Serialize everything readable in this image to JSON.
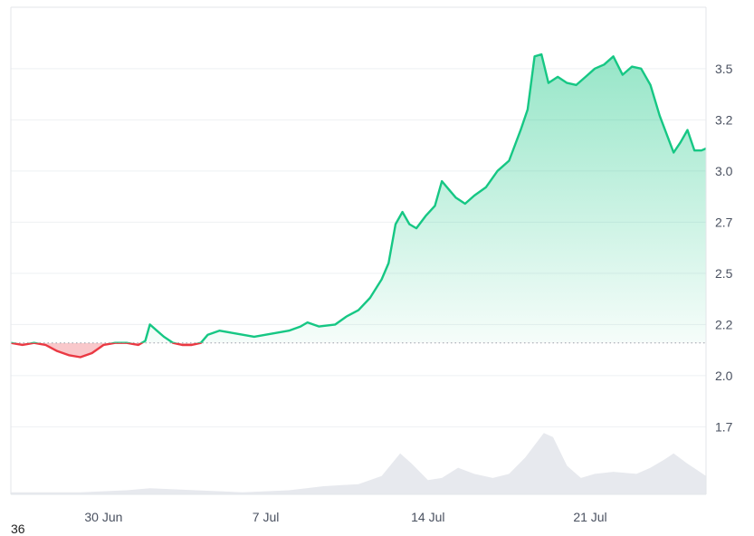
{
  "chart_data": {
    "type": "area",
    "baseline": 2.16,
    "ylim": [
      1.42,
      3.8
    ],
    "y_ticks": [
      "3.5",
      "3.2",
      "3.0",
      "2.7",
      "2.5",
      "2.2",
      "2.0",
      "1.7"
    ],
    "y_tick_values": [
      3.5,
      3.25,
      3.0,
      2.75,
      2.5,
      2.25,
      2.0,
      1.75
    ],
    "x_ticks": [
      "30 Jun",
      "7 Jul",
      "14 Jul",
      "21 Jul"
    ],
    "x_tick_days": [
      4,
      11,
      18,
      25
    ],
    "xlim_days": [
      0,
      30
    ],
    "colors": {
      "up_line": "#16c784",
      "down_line": "#ea3943",
      "up_fill_top": "#16c784",
      "down_fill": "#ea3943",
      "volume": "#e7e9ee",
      "grid": "#eef0f3",
      "baseline": "#9aa0aa"
    },
    "price": [
      [
        0.0,
        2.16
      ],
      [
        0.5,
        2.15
      ],
      [
        1.0,
        2.16
      ],
      [
        1.5,
        2.15
      ],
      [
        2.0,
        2.12
      ],
      [
        2.5,
        2.1
      ],
      [
        3.0,
        2.09
      ],
      [
        3.5,
        2.11
      ],
      [
        4.0,
        2.15
      ],
      [
        4.5,
        2.16
      ],
      [
        5.0,
        2.16
      ],
      [
        5.5,
        2.15
      ],
      [
        5.8,
        2.17
      ],
      [
        6.0,
        2.25
      ],
      [
        6.3,
        2.22
      ],
      [
        6.6,
        2.19
      ],
      [
        7.0,
        2.16
      ],
      [
        7.4,
        2.15
      ],
      [
        7.8,
        2.15
      ],
      [
        8.2,
        2.16
      ],
      [
        8.5,
        2.2
      ],
      [
        9.0,
        2.22
      ],
      [
        9.5,
        2.21
      ],
      [
        10.0,
        2.2
      ],
      [
        10.5,
        2.19
      ],
      [
        11.0,
        2.2
      ],
      [
        11.5,
        2.21
      ],
      [
        12.0,
        2.22
      ],
      [
        12.5,
        2.24
      ],
      [
        12.8,
        2.26
      ],
      [
        13.3,
        2.24
      ],
      [
        14.0,
        2.25
      ],
      [
        14.5,
        2.29
      ],
      [
        15.0,
        2.32
      ],
      [
        15.5,
        2.38
      ],
      [
        16.0,
        2.47
      ],
      [
        16.3,
        2.55
      ],
      [
        16.6,
        2.74
      ],
      [
        16.9,
        2.8
      ],
      [
        17.2,
        2.74
      ],
      [
        17.5,
        2.72
      ],
      [
        17.9,
        2.78
      ],
      [
        18.3,
        2.83
      ],
      [
        18.6,
        2.95
      ],
      [
        18.9,
        2.91
      ],
      [
        19.2,
        2.87
      ],
      [
        19.6,
        2.84
      ],
      [
        20.0,
        2.88
      ],
      [
        20.5,
        2.92
      ],
      [
        21.0,
        3.0
      ],
      [
        21.5,
        3.05
      ],
      [
        22.0,
        3.2
      ],
      [
        22.3,
        3.3
      ],
      [
        22.6,
        3.56
      ],
      [
        22.9,
        3.57
      ],
      [
        23.2,
        3.43
      ],
      [
        23.6,
        3.46
      ],
      [
        24.0,
        3.43
      ],
      [
        24.4,
        3.42
      ],
      [
        24.8,
        3.46
      ],
      [
        25.2,
        3.5
      ],
      [
        25.6,
        3.52
      ],
      [
        26.0,
        3.56
      ],
      [
        26.4,
        3.47
      ],
      [
        26.8,
        3.51
      ],
      [
        27.2,
        3.5
      ],
      [
        27.6,
        3.42
      ],
      [
        28.0,
        3.27
      ],
      [
        28.3,
        3.18
      ],
      [
        28.6,
        3.09
      ],
      [
        28.9,
        3.14
      ],
      [
        29.2,
        3.2
      ],
      [
        29.5,
        3.1
      ],
      [
        29.8,
        3.1
      ],
      [
        30.0,
        3.11
      ]
    ],
    "volume": [
      [
        0.0,
        1.43
      ],
      [
        3.0,
        1.43
      ],
      [
        5.0,
        1.44
      ],
      [
        6.0,
        1.45
      ],
      [
        8.0,
        1.44
      ],
      [
        10.0,
        1.43
      ],
      [
        12.0,
        1.44
      ],
      [
        13.5,
        1.46
      ],
      [
        15.0,
        1.47
      ],
      [
        16.0,
        1.51
      ],
      [
        16.8,
        1.62
      ],
      [
        17.3,
        1.57
      ],
      [
        18.0,
        1.49
      ],
      [
        18.6,
        1.5
      ],
      [
        19.3,
        1.55
      ],
      [
        20.0,
        1.52
      ],
      [
        20.8,
        1.5
      ],
      [
        21.5,
        1.52
      ],
      [
        22.2,
        1.6
      ],
      [
        23.0,
        1.72
      ],
      [
        23.4,
        1.7
      ],
      [
        24.0,
        1.56
      ],
      [
        24.6,
        1.5
      ],
      [
        25.2,
        1.52
      ],
      [
        26.0,
        1.53
      ],
      [
        27.0,
        1.52
      ],
      [
        27.6,
        1.55
      ],
      [
        28.2,
        1.59
      ],
      [
        28.6,
        1.62
      ],
      [
        29.2,
        1.57
      ],
      [
        29.6,
        1.54
      ],
      [
        30.0,
        1.51
      ]
    ],
    "corner_label": "36"
  }
}
